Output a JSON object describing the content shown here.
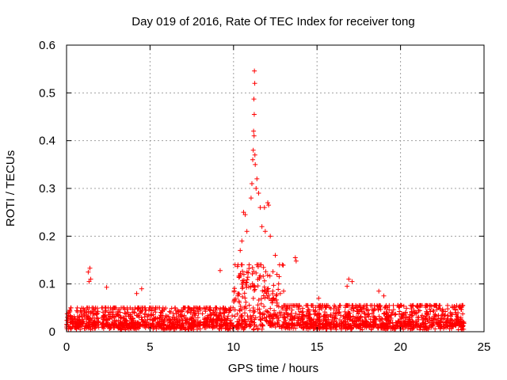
{
  "chart_data": {
    "type": "scatter",
    "title": "Day 019 of 2016, Rate Of TEC Index for receiver tong",
    "xlabel": "GPS time / hours",
    "ylabel": "ROTI / TECUs",
    "xlim": [
      0,
      25
    ],
    "ylim": [
      0,
      0.6
    ],
    "x_ticks": [
      0,
      5,
      10,
      15,
      20,
      25
    ],
    "x_tick_labels": [
      "0",
      "5",
      "10",
      "15",
      "20",
      "25"
    ],
    "y_ticks": [
      0,
      0.1,
      0.2,
      0.3,
      0.4,
      0.5,
      0.6
    ],
    "y_tick_labels": [
      "0",
      "0.1",
      "0.2",
      "0.3",
      "0.4",
      "0.5",
      "0.6"
    ],
    "grid": true,
    "marker": "+",
    "color": "#ff0000",
    "series": [
      {
        "name": "ROTI",
        "points": [
          [
            11.25,
            0.546
          ],
          [
            11.27,
            0.52
          ],
          [
            11.22,
            0.487
          ],
          [
            11.24,
            0.455
          ],
          [
            11.2,
            0.42
          ],
          [
            11.23,
            0.41
          ],
          [
            11.18,
            0.38
          ],
          [
            11.28,
            0.37
          ],
          [
            11.15,
            0.36
          ],
          [
            11.3,
            0.35
          ],
          [
            11.1,
            0.31
          ],
          [
            11.4,
            0.32
          ],
          [
            11.35,
            0.3
          ],
          [
            11.05,
            0.28
          ],
          [
            11.5,
            0.29
          ],
          [
            11.6,
            0.26
          ],
          [
            12.05,
            0.27
          ],
          [
            12.1,
            0.265
          ],
          [
            11.85,
            0.26
          ],
          [
            10.6,
            0.25
          ],
          [
            10.7,
            0.245
          ],
          [
            11.7,
            0.22
          ],
          [
            11.9,
            0.21
          ],
          [
            12.2,
            0.2
          ],
          [
            10.8,
            0.21
          ],
          [
            10.4,
            0.17
          ],
          [
            10.5,
            0.19
          ],
          [
            12.5,
            0.16
          ],
          [
            12.6,
            0.12
          ],
          [
            12.7,
            0.1
          ],
          [
            13.7,
            0.155
          ],
          [
            13.75,
            0.148
          ],
          [
            9.2,
            0.128
          ],
          [
            1.4,
            0.133
          ],
          [
            1.3,
            0.125
          ],
          [
            1.45,
            0.11
          ],
          [
            1.35,
            0.105
          ],
          [
            16.9,
            0.11
          ],
          [
            17.1,
            0.105
          ],
          [
            16.8,
            0.095
          ],
          [
            2.4,
            0.093
          ],
          [
            4.5,
            0.09
          ],
          [
            4.2,
            0.08
          ],
          [
            18.7,
            0.085
          ],
          [
            12.8,
            0.08
          ],
          [
            13.0,
            0.085
          ],
          [
            15.1,
            0.07
          ],
          [
            19.0,
            0.075
          ]
        ],
        "bands": [
          {
            "x": [
              0,
              10
            ],
            "y_max": 0.05
          },
          {
            "x": [
              10,
              13
            ],
            "y_max": 0.14
          },
          {
            "x": [
              13,
              24
            ],
            "y_max": 0.055
          }
        ]
      }
    ]
  }
}
